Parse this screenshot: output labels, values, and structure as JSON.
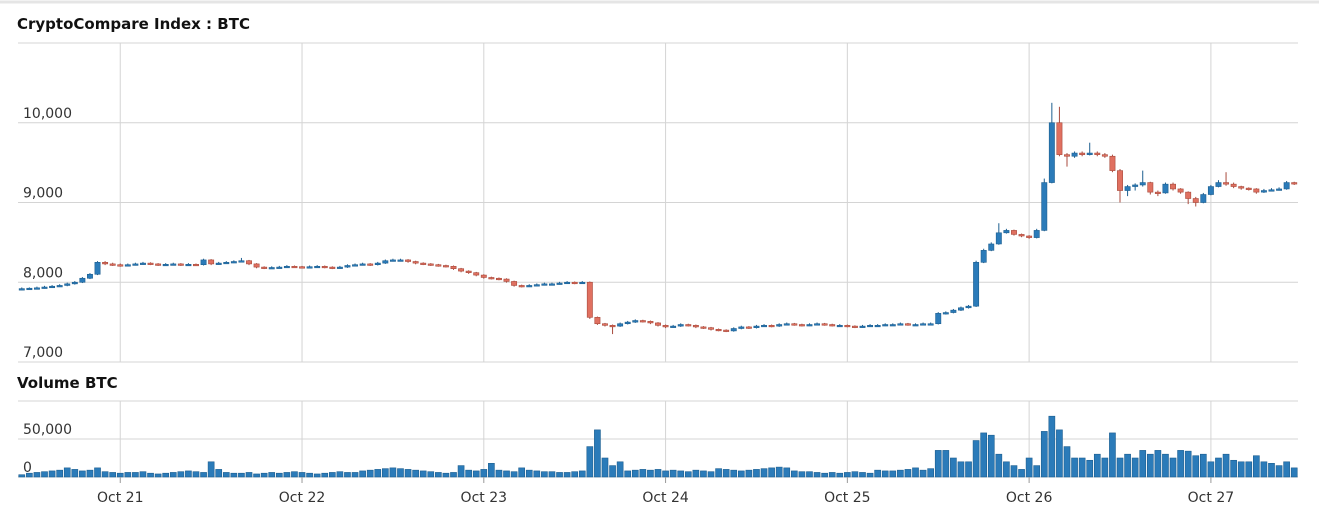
{
  "chart_data": [
    {
      "type": "candlestick",
      "title": "CryptoCompare Index : BTC",
      "up_color": "#2b7bb9",
      "down_color": "#e07060",
      "grid": true,
      "xlim": [
        -0.5,
        168.5
      ],
      "ylim": [
        7000,
        11000
      ],
      "yticks": [
        {
          "value": 7000,
          "label": "7,000"
        },
        {
          "value": 8000,
          "label": "8,000"
        },
        {
          "value": 9000,
          "label": "9,000"
        },
        {
          "value": 10000,
          "label": "10,000"
        }
      ],
      "ohlc": [
        [
          7910,
          7935,
          7900,
          7920
        ],
        [
          7920,
          7935,
          7910,
          7925
        ],
        [
          7925,
          7945,
          7915,
          7930
        ],
        [
          7930,
          7955,
          7920,
          7940
        ],
        [
          7940,
          7965,
          7930,
          7950
        ],
        [
          7950,
          7975,
          7940,
          7960
        ],
        [
          7960,
          7995,
          7950,
          7980
        ],
        [
          7980,
          8015,
          7970,
          8000
        ],
        [
          8000,
          8065,
          7990,
          8050
        ],
        [
          8050,
          8115,
          8040,
          8100
        ],
        [
          8100,
          8265,
          8090,
          8250
        ],
        [
          8250,
          8265,
          8215,
          8230
        ],
        [
          8230,
          8245,
          8205,
          8220
        ],
        [
          8220,
          8235,
          8195,
          8210
        ],
        [
          8210,
          8235,
          8200,
          8220
        ],
        [
          8220,
          8245,
          8210,
          8230
        ],
        [
          8230,
          8255,
          8220,
          8240
        ],
        [
          8240,
          8250,
          8215,
          8230
        ],
        [
          8230,
          8240,
          8205,
          8220
        ],
        [
          8220,
          8240,
          8210,
          8225
        ],
        [
          8225,
          8245,
          8215,
          8230
        ],
        [
          8230,
          8240,
          8205,
          8220
        ],
        [
          8220,
          8240,
          8210,
          8225
        ],
        [
          8225,
          8235,
          8205,
          8220
        ],
        [
          8220,
          8295,
          8210,
          8280
        ],
        [
          8280,
          8290,
          8215,
          8230
        ],
        [
          8230,
          8255,
          8220,
          8240
        ],
        [
          8240,
          8265,
          8230,
          8250
        ],
        [
          8250,
          8275,
          8240,
          8260
        ],
        [
          8260,
          8305,
          8250,
          8270
        ],
        [
          8270,
          8280,
          8215,
          8230
        ],
        [
          8230,
          8240,
          8175,
          8190
        ],
        [
          8190,
          8200,
          8165,
          8180
        ],
        [
          8180,
          8200,
          8170,
          8185
        ],
        [
          8185,
          8205,
          8175,
          8190
        ],
        [
          8190,
          8215,
          8180,
          8200
        ],
        [
          8200,
          8210,
          8185,
          8195
        ],
        [
          8195,
          8205,
          8175,
          8190
        ],
        [
          8190,
          8210,
          8180,
          8195
        ],
        [
          8195,
          8215,
          8185,
          8200
        ],
        [
          8200,
          8210,
          8175,
          8190
        ],
        [
          8190,
          8200,
          8165,
          8180
        ],
        [
          8180,
          8205,
          8170,
          8190
        ],
        [
          8190,
          8225,
          8180,
          8210
        ],
        [
          8210,
          8235,
          8200,
          8220
        ],
        [
          8220,
          8245,
          8210,
          8230
        ],
        [
          8230,
          8240,
          8205,
          8220
        ],
        [
          8220,
          8255,
          8210,
          8240
        ],
        [
          8240,
          8285,
          8230,
          8270
        ],
        [
          8270,
          8295,
          8260,
          8280
        ],
        [
          8280,
          8295,
          8265,
          8280
        ],
        [
          8280,
          8290,
          8245,
          8260
        ],
        [
          8260,
          8270,
          8225,
          8240
        ],
        [
          8240,
          8250,
          8215,
          8230
        ],
        [
          8230,
          8240,
          8205,
          8220
        ],
        [
          8220,
          8230,
          8195,
          8210
        ],
        [
          8210,
          8220,
          8185,
          8200
        ],
        [
          8200,
          8210,
          8155,
          8170
        ],
        [
          8170,
          8180,
          8125,
          8140
        ],
        [
          8140,
          8150,
          8105,
          8120
        ],
        [
          8120,
          8130,
          8075,
          8090
        ],
        [
          8090,
          8100,
          8045,
          8060
        ],
        [
          8060,
          8070,
          8035,
          8050
        ],
        [
          8050,
          8060,
          8025,
          8040
        ],
        [
          8040,
          8050,
          7995,
          8010
        ],
        [
          8010,
          8020,
          7945,
          7960
        ],
        [
          7960,
          7970,
          7935,
          7950
        ],
        [
          7950,
          7975,
          7940,
          7960
        ],
        [
          7960,
          7985,
          7950,
          7970
        ],
        [
          7970,
          7995,
          7960,
          7980
        ],
        [
          7980,
          7995,
          7965,
          7980
        ],
        [
          7980,
          8005,
          7970,
          7990
        ],
        [
          7990,
          8015,
          7980,
          8000
        ],
        [
          8000,
          8010,
          7975,
          7990
        ],
        [
          7990,
          8015,
          7980,
          8000
        ],
        [
          8000,
          8010,
          7540,
          7560
        ],
        [
          7560,
          7570,
          7465,
          7480
        ],
        [
          7480,
          7490,
          7445,
          7460
        ],
        [
          7460,
          7470,
          7350,
          7450
        ],
        [
          7450,
          7495,
          7440,
          7480
        ],
        [
          7480,
          7515,
          7470,
          7500
        ],
        [
          7500,
          7535,
          7490,
          7520
        ],
        [
          7520,
          7530,
          7495,
          7510
        ],
        [
          7510,
          7520,
          7475,
          7490
        ],
        [
          7490,
          7500,
          7445,
          7460
        ],
        [
          7460,
          7470,
          7425,
          7440
        ],
        [
          7440,
          7465,
          7430,
          7450
        ],
        [
          7450,
          7485,
          7440,
          7470
        ],
        [
          7470,
          7480,
          7445,
          7460
        ],
        [
          7460,
          7470,
          7425,
          7440
        ],
        [
          7440,
          7450,
          7415,
          7430
        ],
        [
          7430,
          7440,
          7395,
          7410
        ],
        [
          7410,
          7420,
          7385,
          7400
        ],
        [
          7400,
          7410,
          7375,
          7390
        ],
        [
          7390,
          7435,
          7380,
          7420
        ],
        [
          7420,
          7455,
          7410,
          7440
        ],
        [
          7440,
          7450,
          7415,
          7430
        ],
        [
          7430,
          7465,
          7420,
          7450
        ],
        [
          7450,
          7475,
          7440,
          7460
        ],
        [
          7460,
          7470,
          7435,
          7450
        ],
        [
          7450,
          7485,
          7440,
          7470
        ],
        [
          7470,
          7495,
          7460,
          7480
        ],
        [
          7480,
          7490,
          7455,
          7470
        ],
        [
          7470,
          7480,
          7445,
          7460
        ],
        [
          7460,
          7485,
          7450,
          7470
        ],
        [
          7470,
          7495,
          7460,
          7480
        ],
        [
          7480,
          7490,
          7455,
          7470
        ],
        [
          7470,
          7480,
          7445,
          7460
        ],
        [
          7460,
          7475,
          7445,
          7460
        ],
        [
          7460,
          7470,
          7435,
          7450
        ],
        [
          7450,
          7460,
          7425,
          7440
        ],
        [
          7440,
          7465,
          7430,
          7450
        ],
        [
          7450,
          7475,
          7440,
          7460
        ],
        [
          7460,
          7475,
          7445,
          7460
        ],
        [
          7460,
          7485,
          7450,
          7470
        ],
        [
          7470,
          7485,
          7455,
          7470
        ],
        [
          7470,
          7495,
          7460,
          7480
        ],
        [
          7480,
          7490,
          7455,
          7470
        ],
        [
          7470,
          7485,
          7455,
          7470
        ],
        [
          7470,
          7495,
          7460,
          7480
        ],
        [
          7480,
          7495,
          7465,
          7480
        ],
        [
          7480,
          7625,
          7470,
          7610
        ],
        [
          7610,
          7635,
          7595,
          7620
        ],
        [
          7620,
          7665,
          7610,
          7650
        ],
        [
          7650,
          7695,
          7640,
          7680
        ],
        [
          7680,
          7715,
          7670,
          7700
        ],
        [
          7700,
          8270,
          7690,
          8250
        ],
        [
          8250,
          8420,
          8240,
          8400
        ],
        [
          8400,
          8500,
          8390,
          8480
        ],
        [
          8480,
          8740,
          8470,
          8620
        ],
        [
          8620,
          8670,
          8610,
          8650
        ],
        [
          8650,
          8660,
          8585,
          8600
        ],
        [
          8600,
          8610,
          8565,
          8580
        ],
        [
          8580,
          8590,
          8545,
          8560
        ],
        [
          8560,
          8670,
          8550,
          8650
        ],
        [
          8650,
          9300,
          8640,
          9250
        ],
        [
          9250,
          10250,
          9240,
          10000
        ],
        [
          10000,
          10200,
          9580,
          9600
        ],
        [
          9600,
          9620,
          9450,
          9580
        ],
        [
          9580,
          9640,
          9560,
          9620
        ],
        [
          9620,
          9640,
          9580,
          9600
        ],
        [
          9600,
          9750,
          9590,
          9620
        ],
        [
          9620,
          9640,
          9580,
          9600
        ],
        [
          9600,
          9620,
          9560,
          9580
        ],
        [
          9580,
          9600,
          9380,
          9400
        ],
        [
          9400,
          9420,
          9000,
          9150
        ],
        [
          9150,
          9220,
          9080,
          9200
        ],
        [
          9200,
          9240,
          9150,
          9220
        ],
        [
          9220,
          9400,
          9200,
          9250
        ],
        [
          9250,
          9260,
          9100,
          9130
        ],
        [
          9130,
          9150,
          9080,
          9120
        ],
        [
          9120,
          9250,
          9110,
          9230
        ],
        [
          9230,
          9250,
          9150,
          9170
        ],
        [
          9170,
          9180,
          9110,
          9130
        ],
        [
          9130,
          9140,
          8980,
          9050
        ],
        [
          9050,
          9070,
          8950,
          9000
        ],
        [
          9000,
          9120,
          8990,
          9100
        ],
        [
          9100,
          9220,
          9090,
          9200
        ],
        [
          9200,
          9280,
          9190,
          9250
        ],
        [
          9250,
          9380,
          9210,
          9230
        ],
        [
          9230,
          9250,
          9180,
          9200
        ],
        [
          9200,
          9210,
          9160,
          9180
        ],
        [
          9180,
          9190,
          9150,
          9170
        ],
        [
          9170,
          9180,
          9110,
          9130
        ],
        [
          9130,
          9170,
          9120,
          9150
        ],
        [
          9150,
          9180,
          9140,
          9160
        ],
        [
          9160,
          9190,
          9150,
          9170
        ],
        [
          9170,
          9270,
          9160,
          9250
        ],
        [
          9250,
          9260,
          9220,
          9240
        ]
      ]
    },
    {
      "type": "bar",
      "title": "Volume BTC",
      "color": "#2b7bb9",
      "grid": true,
      "xlim": [
        -0.5,
        168.5
      ],
      "ylim": [
        0,
        100000
      ],
      "yticks": [
        0,
        {
          "value": 50000,
          "label": "50,000"
        }
      ],
      "xticks": [
        {
          "value": 13,
          "label": "Oct 21"
        },
        {
          "value": 37,
          "label": "Oct 22"
        },
        {
          "value": 61,
          "label": "Oct 23"
        },
        {
          "value": 85,
          "label": "Oct 24"
        },
        {
          "value": 109,
          "label": "Oct 25"
        },
        {
          "value": 133,
          "label": "Oct 26"
        },
        {
          "value": 157,
          "label": "Oct 27"
        }
      ],
      "values": [
        3000,
        5000,
        6000,
        7000,
        8000,
        9000,
        12000,
        10000,
        8000,
        9000,
        12000,
        7000,
        6000,
        5000,
        6000,
        6000,
        7000,
        5000,
        4000,
        5000,
        6000,
        7000,
        8000,
        7000,
        6000,
        20000,
        10000,
        6000,
        5000,
        5000,
        6000,
        4000,
        5000,
        6000,
        5000,
        6000,
        7000,
        6000,
        5000,
        4000,
        5000,
        6000,
        7000,
        6000,
        6000,
        8000,
        9000,
        10000,
        11000,
        12000,
        11000,
        10000,
        9000,
        8000,
        7000,
        6000,
        5000,
        6000,
        15000,
        9000,
        8000,
        10000,
        18000,
        9000,
        8000,
        7000,
        12000,
        9000,
        8000,
        7000,
        7000,
        6000,
        6000,
        7000,
        8000,
        40000,
        62000,
        25000,
        15000,
        20000,
        8000,
        9000,
        10000,
        9000,
        10000,
        8000,
        9000,
        8000,
        7000,
        9000,
        8000,
        7000,
        11000,
        10000,
        9000,
        8000,
        9000,
        10000,
        11000,
        12000,
        13000,
        12000,
        8000,
        7000,
        7000,
        6000,
        5000,
        6000,
        5000,
        6000,
        7000,
        6000,
        5000,
        9000,
        8000,
        8000,
        9000,
        10000,
        12000,
        9000,
        11000,
        35000,
        35000,
        25000,
        20000,
        20000,
        48000,
        58000,
        55000,
        30000,
        20000,
        15000,
        10000,
        25000,
        15000,
        60000,
        80000,
        62000,
        40000,
        25000,
        25000,
        22000,
        30000,
        25000,
        58000,
        25000,
        30000,
        25000,
        35000,
        30000,
        35000,
        30000,
        25000,
        35000,
        34000,
        28000,
        30000,
        20000,
        25000,
        30000,
        22000,
        20000,
        20000,
        28000,
        20000,
        18000,
        15000,
        20000,
        12000
      ]
    }
  ]
}
